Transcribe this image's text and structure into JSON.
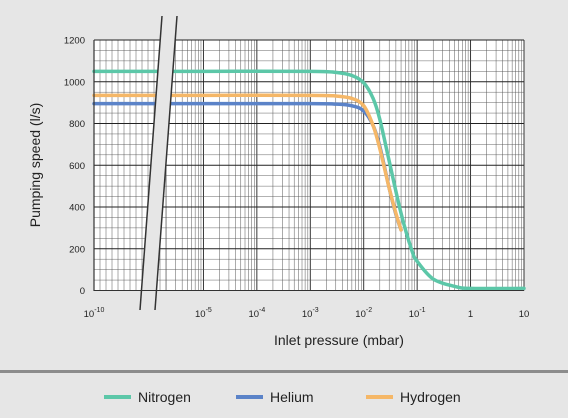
{
  "chart_data": {
    "type": "line",
    "xlabel": "Inlet pressure (mbar)",
    "ylabel": "Pumping speed (l/s)",
    "xscale": "log",
    "xaxis_break": "between 10^-10 and 10^-6",
    "ylim": [
      0,
      1200
    ],
    "yticks": [
      0,
      200,
      400,
      600,
      800,
      1000,
      1200
    ],
    "ytick_labels": [
      "0",
      "200",
      "400",
      "600",
      "800",
      "1000",
      "1200"
    ],
    "xticks": [
      {
        "base": "10",
        "exp": "-10"
      },
      {
        "base": "10",
        "exp": "-5"
      },
      {
        "base": "10",
        "exp": "-4"
      },
      {
        "base": "10",
        "exp": "-3"
      },
      {
        "base": "10",
        "exp": "-2"
      },
      {
        "base": "10",
        "exp": "-1"
      },
      {
        "base": "1",
        "exp": ""
      },
      {
        "base": "10",
        "exp": ""
      }
    ],
    "grid": true,
    "legend_position": "bottom",
    "series": [
      {
        "name": "Nitrogen",
        "color": "#5cc7a8",
        "x": [
          1e-10,
          1e-05,
          0.001,
          0.003,
          0.006,
          0.01,
          0.015,
          0.02,
          0.03,
          0.05,
          0.08,
          0.1,
          0.2,
          0.5,
          1,
          10
        ],
        "y": [
          1050,
          1050,
          1050,
          1045,
          1030,
          995,
          920,
          820,
          620,
          370,
          190,
          140,
          55,
          20,
          10,
          10
        ]
      },
      {
        "name": "Helium",
        "color": "#5b83c8",
        "x": [
          1e-10,
          1e-05,
          0.001,
          0.003,
          0.006,
          0.01,
          0.015,
          0.02,
          0.03,
          0.04,
          0.05
        ],
        "y": [
          895,
          895,
          895,
          893,
          885,
          860,
          790,
          690,
          490,
          365,
          290
        ]
      },
      {
        "name": "Hydrogen",
        "color": "#f5b767",
        "x": [
          1e-10,
          1e-05,
          0.001,
          0.003,
          0.006,
          0.01,
          0.015,
          0.02,
          0.03,
          0.04,
          0.05
        ],
        "y": [
          935,
          935,
          935,
          932,
          920,
          885,
          790,
          680,
          490,
          370,
          290
        ]
      }
    ]
  }
}
